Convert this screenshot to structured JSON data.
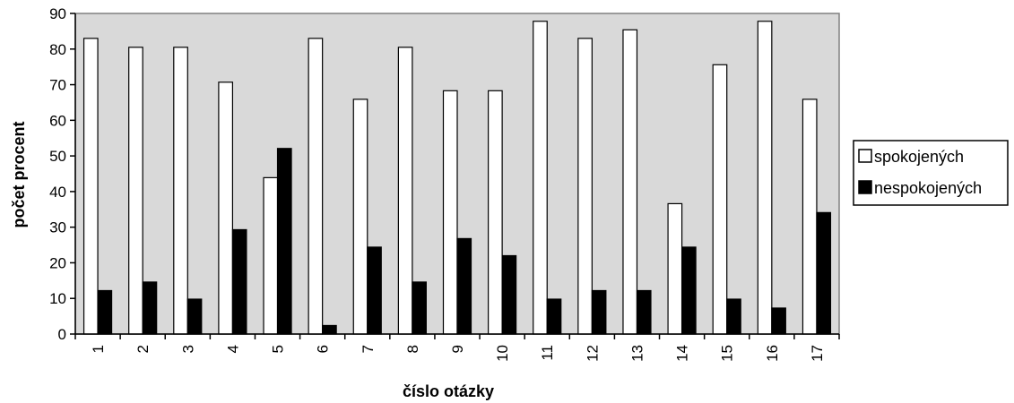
{
  "chart_data": {
    "type": "bar",
    "title": "",
    "xlabel": "číslo otázky",
    "ylabel": "počet procent",
    "ylim": [
      0,
      90
    ],
    "yticks": [
      0,
      10,
      20,
      30,
      40,
      50,
      60,
      70,
      80,
      90
    ],
    "grid": false,
    "legend_position": "right",
    "categories": [
      "1",
      "2",
      "3",
      "4",
      "5",
      "6",
      "7",
      "8",
      "9",
      "10",
      "11",
      "12",
      "13",
      "14",
      "15",
      "16",
      "17"
    ],
    "series": [
      {
        "name": "spokojených",
        "color": "#ffffff",
        "values": [
          83,
          80.5,
          80.5,
          70.7,
          43.9,
          83,
          65.9,
          80.5,
          68.3,
          68.3,
          87.8,
          83,
          85.4,
          36.6,
          75.6,
          87.8,
          65.9
        ]
      },
      {
        "name": "nespokojených",
        "color": "#000000",
        "values": [
          12.2,
          14.6,
          9.8,
          29.3,
          52.1,
          2.4,
          24.4,
          14.6,
          26.8,
          22,
          9.8,
          12.2,
          12.2,
          24.4,
          9.8,
          7.3,
          34.1
        ]
      }
    ],
    "plot_background": "#d9d9d9"
  }
}
